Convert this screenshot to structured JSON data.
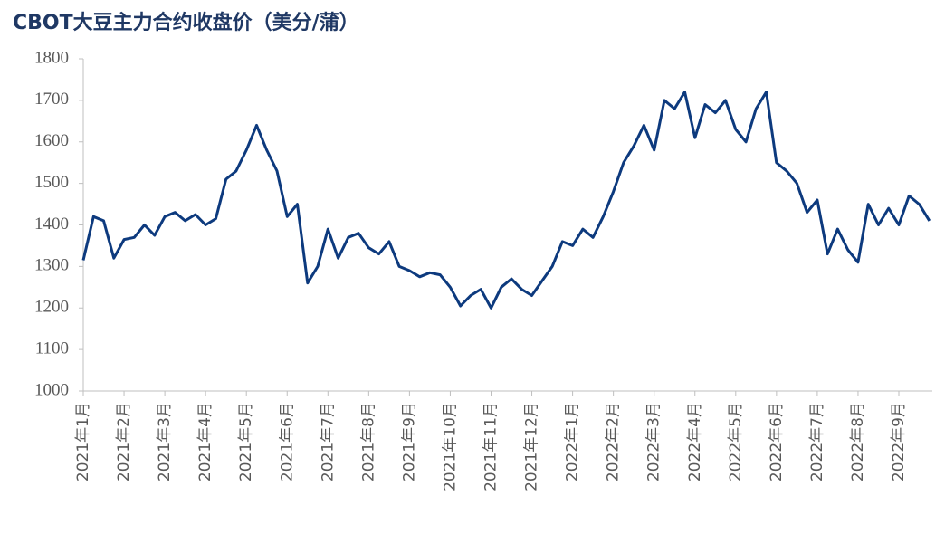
{
  "chart_data": {
    "type": "line",
    "title": "CBOT大豆主力合约收盘价（美分/蒲）",
    "categories": [
      "2021年1月",
      null,
      null,
      null,
      "2021年2月",
      null,
      null,
      null,
      "2021年3月",
      null,
      null,
      null,
      "2021年4月",
      null,
      null,
      null,
      "2021年5月",
      null,
      null,
      null,
      "2021年6月",
      null,
      null,
      null,
      "2021年7月",
      null,
      null,
      null,
      "2021年8月",
      null,
      null,
      null,
      "2021年9月",
      null,
      null,
      null,
      "2021年10月",
      null,
      null,
      null,
      "2021年11月",
      null,
      null,
      null,
      "2021年12月",
      null,
      null,
      null,
      "2022年1月",
      null,
      null,
      null,
      "2022年2月",
      null,
      null,
      null,
      "2022年3月",
      null,
      null,
      null,
      "2022年4月",
      null,
      null,
      null,
      "2022年5月",
      null,
      null,
      null,
      "2022年6月",
      null,
      null,
      null,
      "2022年7月",
      null,
      null,
      null,
      "2022年8月",
      null,
      null,
      null,
      "2022年9月",
      null,
      null,
      null
    ],
    "series": [
      {
        "name": "CBOT大豆主力合约收盘价",
        "color": "#0d3a7e",
        "values": [
          1315,
          1420,
          1410,
          1320,
          1365,
          1370,
          1400,
          1375,
          1420,
          1430,
          1410,
          1425,
          1400,
          1415,
          1510,
          1530,
          1580,
          1640,
          1580,
          1530,
          1420,
          1450,
          1260,
          1300,
          1390,
          1320,
          1370,
          1380,
          1345,
          1330,
          1360,
          1300,
          1290,
          1275,
          1285,
          1280,
          1250,
          1205,
          1230,
          1245,
          1200,
          1250,
          1270,
          1245,
          1230,
          1265,
          1300,
          1360,
          1350,
          1390,
          1370,
          1420,
          1480,
          1550,
          1590,
          1640,
          1580,
          1700,
          1680,
          1720,
          1610,
          1690,
          1670,
          1700,
          1630,
          1600,
          1680,
          1720,
          1550,
          1530,
          1500,
          1430,
          1460,
          1330,
          1390,
          1340,
          1310,
          1450,
          1400,
          1440,
          1400,
          1470,
          1450,
          1410
        ]
      }
    ],
    "ylim": [
      1000,
      1800
    ],
    "yticks": [
      1000,
      1100,
      1200,
      1300,
      1400,
      1500,
      1600,
      1700,
      1800
    ],
    "grid": false
  }
}
